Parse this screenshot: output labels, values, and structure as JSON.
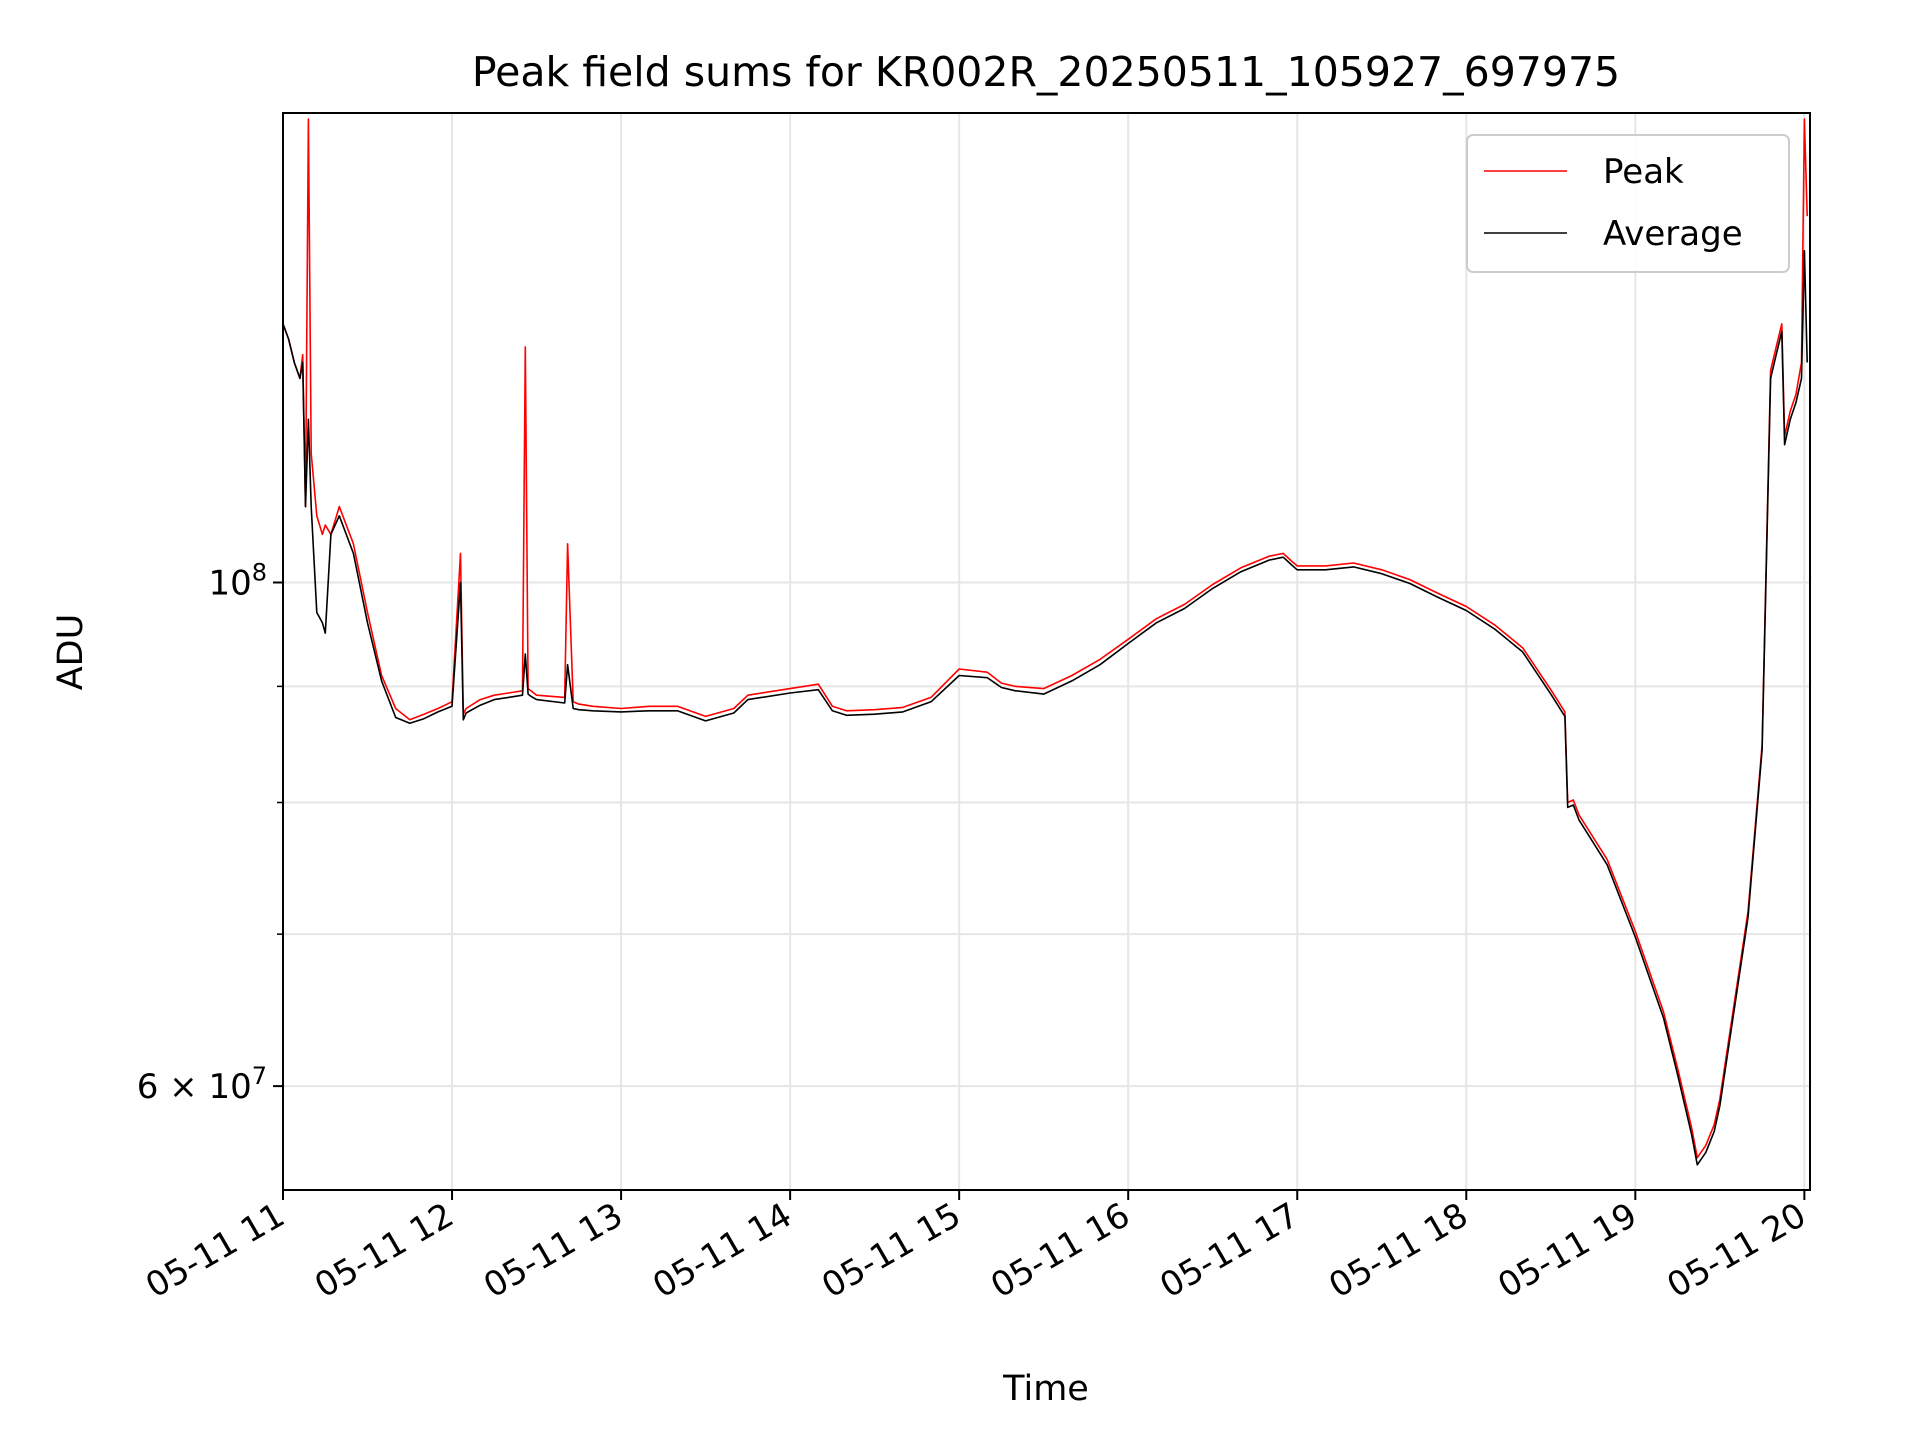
{
  "chart_data": {
    "type": "line",
    "title": "Peak field sums for KR002R_20250511_105927_697975",
    "xlabel": "Time",
    "ylabel": "ADU",
    "x_scale": "time",
    "y_scale": "log",
    "xlim": [
      "2025-05-11 11:00",
      "2025-05-11 20:02"
    ],
    "ylim": [
      54000000,
      161000000
    ],
    "x_ticks": [
      "05-11 11",
      "05-11 12",
      "05-11 13",
      "05-11 14",
      "05-11 15",
      "05-11 16",
      "05-11 17",
      "05-11 18",
      "05-11 19",
      "05-11 20"
    ],
    "y_ticks": [
      {
        "value": 100000000,
        "mantissa": "10",
        "exponent": "8"
      },
      {
        "value": 60000000,
        "mantissa": "6 × 10",
        "exponent": "7"
      }
    ],
    "grid": true,
    "legend_position": "top-right",
    "x": [
      "11:00",
      "11:02",
      "11:04",
      "11:06",
      "11:07",
      "11:08",
      "11:09",
      "11:10",
      "11:12",
      "11:14",
      "11:15",
      "11:17",
      "11:20",
      "11:25",
      "11:30",
      "11:35",
      "11:40",
      "11:45",
      "11:50",
      "11:55",
      "12:00",
      "12:03",
      "12:04",
      "12:05",
      "12:10",
      "12:15",
      "12:20",
      "12:25",
      "12:26",
      "12:27",
      "12:28",
      "12:30",
      "12:40",
      "12:41",
      "12:43",
      "12:45",
      "12:50",
      "13:00",
      "13:10",
      "13:20",
      "13:30",
      "13:40",
      "13:45",
      "14:00",
      "14:10",
      "14:15",
      "14:20",
      "14:30",
      "14:40",
      "14:50",
      "15:00",
      "15:10",
      "15:15",
      "15:20",
      "15:30",
      "15:40",
      "15:50",
      "16:00",
      "16:10",
      "16:20",
      "16:30",
      "16:40",
      "16:50",
      "16:55",
      "16:58",
      "17:00",
      "17:10",
      "17:20",
      "17:30",
      "17:40",
      "17:50",
      "18:00",
      "18:10",
      "18:20",
      "18:30",
      "18:35",
      "18:36",
      "18:38",
      "18:40",
      "18:50",
      "19:00",
      "19:10",
      "19:15",
      "19:20",
      "19:22",
      "19:25",
      "19:28",
      "19:30",
      "19:40",
      "19:45",
      "19:48",
      "19:50",
      "19:52",
      "19:53",
      "19:55",
      "19:57",
      "19:59",
      "20:00",
      "20:01"
    ],
    "series": [
      {
        "name": "Peak",
        "color": "#ff0000",
        "values": [
          130000000,
          128000000,
          125000000,
          123000000,
          126000000,
          108000000,
          160000000,
          114000000,
          107000000,
          105000000,
          106000000,
          105000000,
          108000000,
          104000000,
          97000000,
          91000000,
          88000000,
          87000000,
          87500000,
          88000000,
          88600000,
          103000000,
          87500000,
          88000000,
          88800000,
          89200000,
          89400000,
          89600000,
          127000000,
          89800000,
          89600000,
          89200000,
          89000000,
          104000000,
          88600000,
          88400000,
          88200000,
          88000000,
          88200000,
          88200000,
          87300000,
          88000000,
          89200000,
          89800000,
          90200000,
          88200000,
          87800000,
          87900000,
          88100000,
          89000000,
          91600000,
          91300000,
          90300000,
          90000000,
          89800000,
          91000000,
          92500000,
          94400000,
          96400000,
          97800000,
          99800000,
          101500000,
          102700000,
          103000000,
          102200000,
          101700000,
          101700000,
          102000000,
          101300000,
          100300000,
          98900000,
          97600000,
          95800000,
          93600000,
          89700000,
          87700000,
          80000000,
          80200000,
          79000000,
          75500000,
          70200000,
          64700000,
          61100000,
          57500000,
          55800000,
          56500000,
          57700000,
          59200000,
          71600000,
          84800000,
          124000000,
          127000000,
          130000000,
          116000000,
          119000000,
          121000000,
          125000000,
          160000000,
          145000000
        ]
      },
      {
        "name": "Average",
        "color": "#000000",
        "values": [
          130000000,
          128000000,
          125000000,
          123000000,
          125000000,
          108000000,
          118000000,
          108000000,
          97000000,
          96000000,
          95000000,
          105000000,
          107000000,
          103000000,
          96000000,
          90500000,
          87200000,
          86700000,
          87100000,
          87700000,
          88200000,
          100000000,
          87000000,
          87600000,
          88300000,
          88800000,
          89000000,
          89200000,
          93000000,
          89300000,
          89100000,
          88800000,
          88500000,
          92000000,
          88000000,
          87900000,
          87800000,
          87700000,
          87800000,
          87800000,
          86900000,
          87600000,
          88800000,
          89400000,
          89700000,
          87800000,
          87400000,
          87500000,
          87700000,
          88600000,
          91000000,
          90800000,
          89900000,
          89600000,
          89300000,
          90500000,
          92000000,
          94000000,
          96000000,
          97400000,
          99400000,
          101100000,
          102300000,
          102600000,
          101800000,
          101300000,
          101300000,
          101600000,
          100900000,
          99900000,
          98500000,
          97200000,
          95400000,
          93200000,
          89300000,
          87300000,
          79600000,
          79800000,
          78600000,
          75100000,
          69800000,
          64300000,
          60700000,
          57100000,
          55400000,
          56100000,
          57300000,
          58800000,
          71200000,
          84400000,
          123000000,
          126000000,
          129000000,
          115000000,
          118000000,
          120000000,
          123000000,
          140000000,
          125000000
        ]
      }
    ]
  }
}
